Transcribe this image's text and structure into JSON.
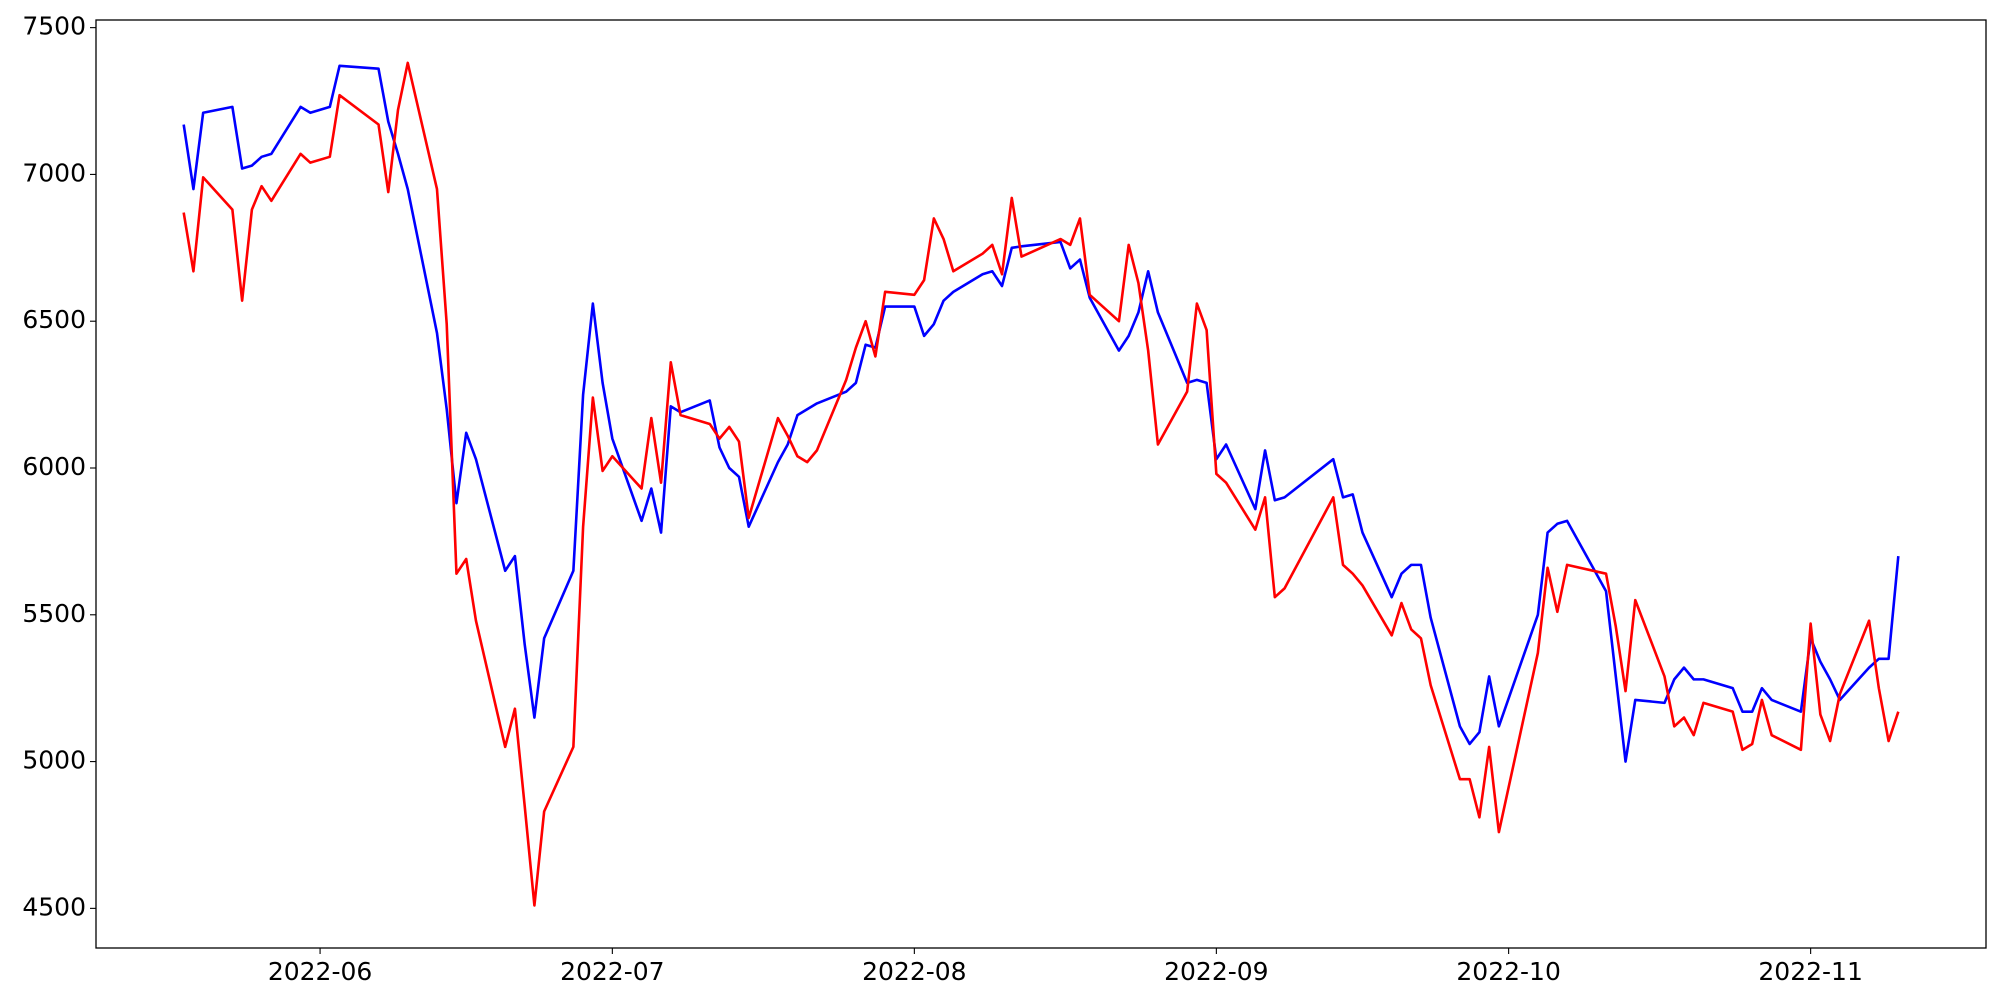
{
  "chart_data": {
    "type": "line",
    "x": [
      "2022-05-18",
      "2022-05-19",
      "2022-05-20",
      "2022-05-23",
      "2022-05-24",
      "2022-05-25",
      "2022-05-26",
      "2022-05-27",
      "2022-05-30",
      "2022-05-31",
      "2022-06-02",
      "2022-06-03",
      "2022-06-07",
      "2022-06-08",
      "2022-06-09",
      "2022-06-10",
      "2022-06-13",
      "2022-06-14",
      "2022-06-15",
      "2022-06-16",
      "2022-06-17",
      "2022-06-20",
      "2022-06-21",
      "2022-06-22",
      "2022-06-23",
      "2022-06-24",
      "2022-06-27",
      "2022-06-28",
      "2022-06-29",
      "2022-06-30",
      "2022-07-01",
      "2022-07-04",
      "2022-07-05",
      "2022-07-06",
      "2022-07-07",
      "2022-07-08",
      "2022-07-11",
      "2022-07-12",
      "2022-07-13",
      "2022-07-14",
      "2022-07-15",
      "2022-07-18",
      "2022-07-19",
      "2022-07-20",
      "2022-07-21",
      "2022-07-22",
      "2022-07-25",
      "2022-07-26",
      "2022-07-27",
      "2022-07-28",
      "2022-07-29",
      "2022-08-01",
      "2022-08-02",
      "2022-08-03",
      "2022-08-04",
      "2022-08-05",
      "2022-08-08",
      "2022-08-09",
      "2022-08-10",
      "2022-08-11",
      "2022-08-12",
      "2022-08-16",
      "2022-08-17",
      "2022-08-18",
      "2022-08-19",
      "2022-08-22",
      "2022-08-23",
      "2022-08-24",
      "2022-08-25",
      "2022-08-26",
      "2022-08-29",
      "2022-08-30",
      "2022-08-31",
      "2022-09-01",
      "2022-09-02",
      "2022-09-05",
      "2022-09-06",
      "2022-09-07",
      "2022-09-08",
      "2022-09-13",
      "2022-09-14",
      "2022-09-15",
      "2022-09-16",
      "2022-09-19",
      "2022-09-20",
      "2022-09-21",
      "2022-09-22",
      "2022-09-23",
      "2022-09-26",
      "2022-09-27",
      "2022-09-28",
      "2022-09-29",
      "2022-09-30",
      "2022-10-04",
      "2022-10-05",
      "2022-10-06",
      "2022-10-07",
      "2022-10-11",
      "2022-10-12",
      "2022-10-13",
      "2022-10-14",
      "2022-10-17",
      "2022-10-18",
      "2022-10-19",
      "2022-10-20",
      "2022-10-21",
      "2022-10-24",
      "2022-10-25",
      "2022-10-26",
      "2022-10-27",
      "2022-10-28",
      "2022-10-31",
      "2022-11-01",
      "2022-11-02",
      "2022-11-03",
      "2022-11-04",
      "2022-11-07",
      "2022-11-08",
      "2022-11-09",
      "2022-11-10"
    ],
    "series": [
      {
        "color": "#0000ff",
        "values": [
          7170,
          6950,
          7210,
          7230,
          7020,
          7030,
          7060,
          7070,
          7230,
          7210,
          7230,
          7370,
          7360,
          7180,
          7070,
          6950,
          6460,
          6200,
          5880,
          6120,
          6030,
          5650,
          5700,
          5400,
          5150,
          5420,
          5650,
          6250,
          6560,
          6290,
          6100,
          5820,
          5930,
          5780,
          6210,
          6190,
          6230,
          6070,
          6000,
          5970,
          5800,
          6020,
          6080,
          6180,
          6200,
          6220,
          6260,
          6290,
          6420,
          6410,
          6550,
          6550,
          6450,
          6490,
          6570,
          6600,
          6660,
          6670,
          6620,
          6750,
          6755,
          6770,
          6680,
          6710,
          6580,
          6400,
          6450,
          6530,
          6670,
          6530,
          6290,
          6300,
          6290,
          6030,
          6080,
          5860,
          6060,
          5890,
          5900,
          6030,
          5900,
          5910,
          5780,
          5560,
          5640,
          5670,
          5670,
          5490,
          5120,
          5060,
          5100,
          5290,
          5120,
          5500,
          5780,
          5810,
          5820,
          5580,
          5290,
          5000,
          5210,
          5200,
          5280,
          5320,
          5280,
          5280,
          5250,
          5170,
          5170,
          5250,
          5210,
          5170,
          5420,
          5340,
          5280,
          5210,
          5320,
          5350,
          5350,
          5700
        ]
      },
      {
        "color": "#ff0000",
        "values": [
          6870,
          6670,
          6990,
          6880,
          6570,
          6880,
          6960,
          6910,
          7070,
          7040,
          7060,
          7270,
          7170,
          6940,
          7220,
          7380,
          6950,
          6490,
          5640,
          5690,
          5480,
          5050,
          5180,
          4850,
          4510,
          4830,
          5050,
          5800,
          6240,
          5990,
          6040,
          5930,
          6170,
          5950,
          6360,
          6180,
          6150,
          6100,
          6140,
          6090,
          5830,
          6170,
          6110,
          6040,
          6020,
          6060,
          6300,
          6410,
          6500,
          6380,
          6600,
          6590,
          6640,
          6850,
          6780,
          6670,
          6730,
          6760,
          6660,
          6920,
          6720,
          6780,
          6760,
          6850,
          6590,
          6500,
          6760,
          6630,
          6400,
          6080,
          6260,
          6560,
          6470,
          5980,
          5950,
          5790,
          5900,
          5560,
          5590,
          5900,
          5670,
          5640,
          5600,
          5430,
          5540,
          5450,
          5420,
          5260,
          4940,
          4940,
          4810,
          5050,
          4760,
          5370,
          5660,
          5510,
          5670,
          5640,
          5460,
          5240,
          5550,
          5290,
          5120,
          5150,
          5090,
          5200,
          5170,
          5040,
          5060,
          5210,
          5090,
          5040,
          5470,
          5160,
          5070,
          5230,
          5480,
          5250,
          5070,
          5170
        ]
      }
    ],
    "xlim": [
      "2022-05-09",
      "2022-11-19"
    ],
    "xticks": [
      {
        "value": "2022-06-01",
        "label": "2022-06"
      },
      {
        "value": "2022-07-01",
        "label": "2022-07"
      },
      {
        "value": "2022-08-01",
        "label": "2022-08"
      },
      {
        "value": "2022-09-01",
        "label": "2022-09"
      },
      {
        "value": "2022-10-01",
        "label": "2022-10"
      },
      {
        "value": "2022-11-01",
        "label": "2022-11"
      }
    ],
    "ylim": [
      4365,
      7526
    ],
    "yticks": [
      4500,
      5000,
      5500,
      6000,
      6500,
      7000,
      7500
    ],
    "grid": false
  }
}
